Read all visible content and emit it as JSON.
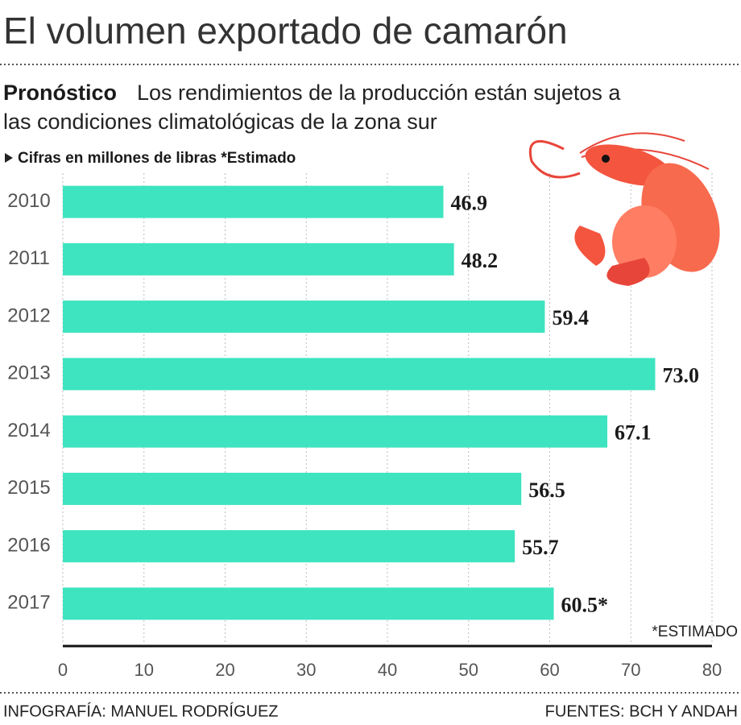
{
  "chart_data": {
    "type": "barh",
    "title": "El volumen exportado de camarón",
    "subtitle_lead": "Pronóstico",
    "subtitle": [
      "Los rendimientos de la producción están sujetos a",
      "las condiciones climatológicas de la zona sur"
    ],
    "note": "Cifras en millones de libras *Estimado",
    "categories": [
      "2010",
      "2011",
      "2012",
      "2013",
      "2014",
      "2015",
      "2016",
      "2017"
    ],
    "values": [
      46.9,
      48.2,
      59.4,
      73,
      67.1,
      56.5,
      55.7,
      60.5
    ],
    "value_labels": [
      "46.9",
      "48.2",
      "59.4",
      "73.0",
      "67.1",
      "56.5",
      "55.7",
      "60.5*"
    ],
    "color": "#3ee4c0",
    "xlim": [
      0,
      80
    ],
    "xticks": [
      0,
      10,
      20,
      30,
      40,
      50,
      60,
      70,
      80
    ],
    "grid": true,
    "footnote": "*ESTIMADO",
    "credit": "INFOGRAFÍA: MANUEL RODRÍGUEZ",
    "source": "FUENTES: BCH Y ANDAH"
  }
}
